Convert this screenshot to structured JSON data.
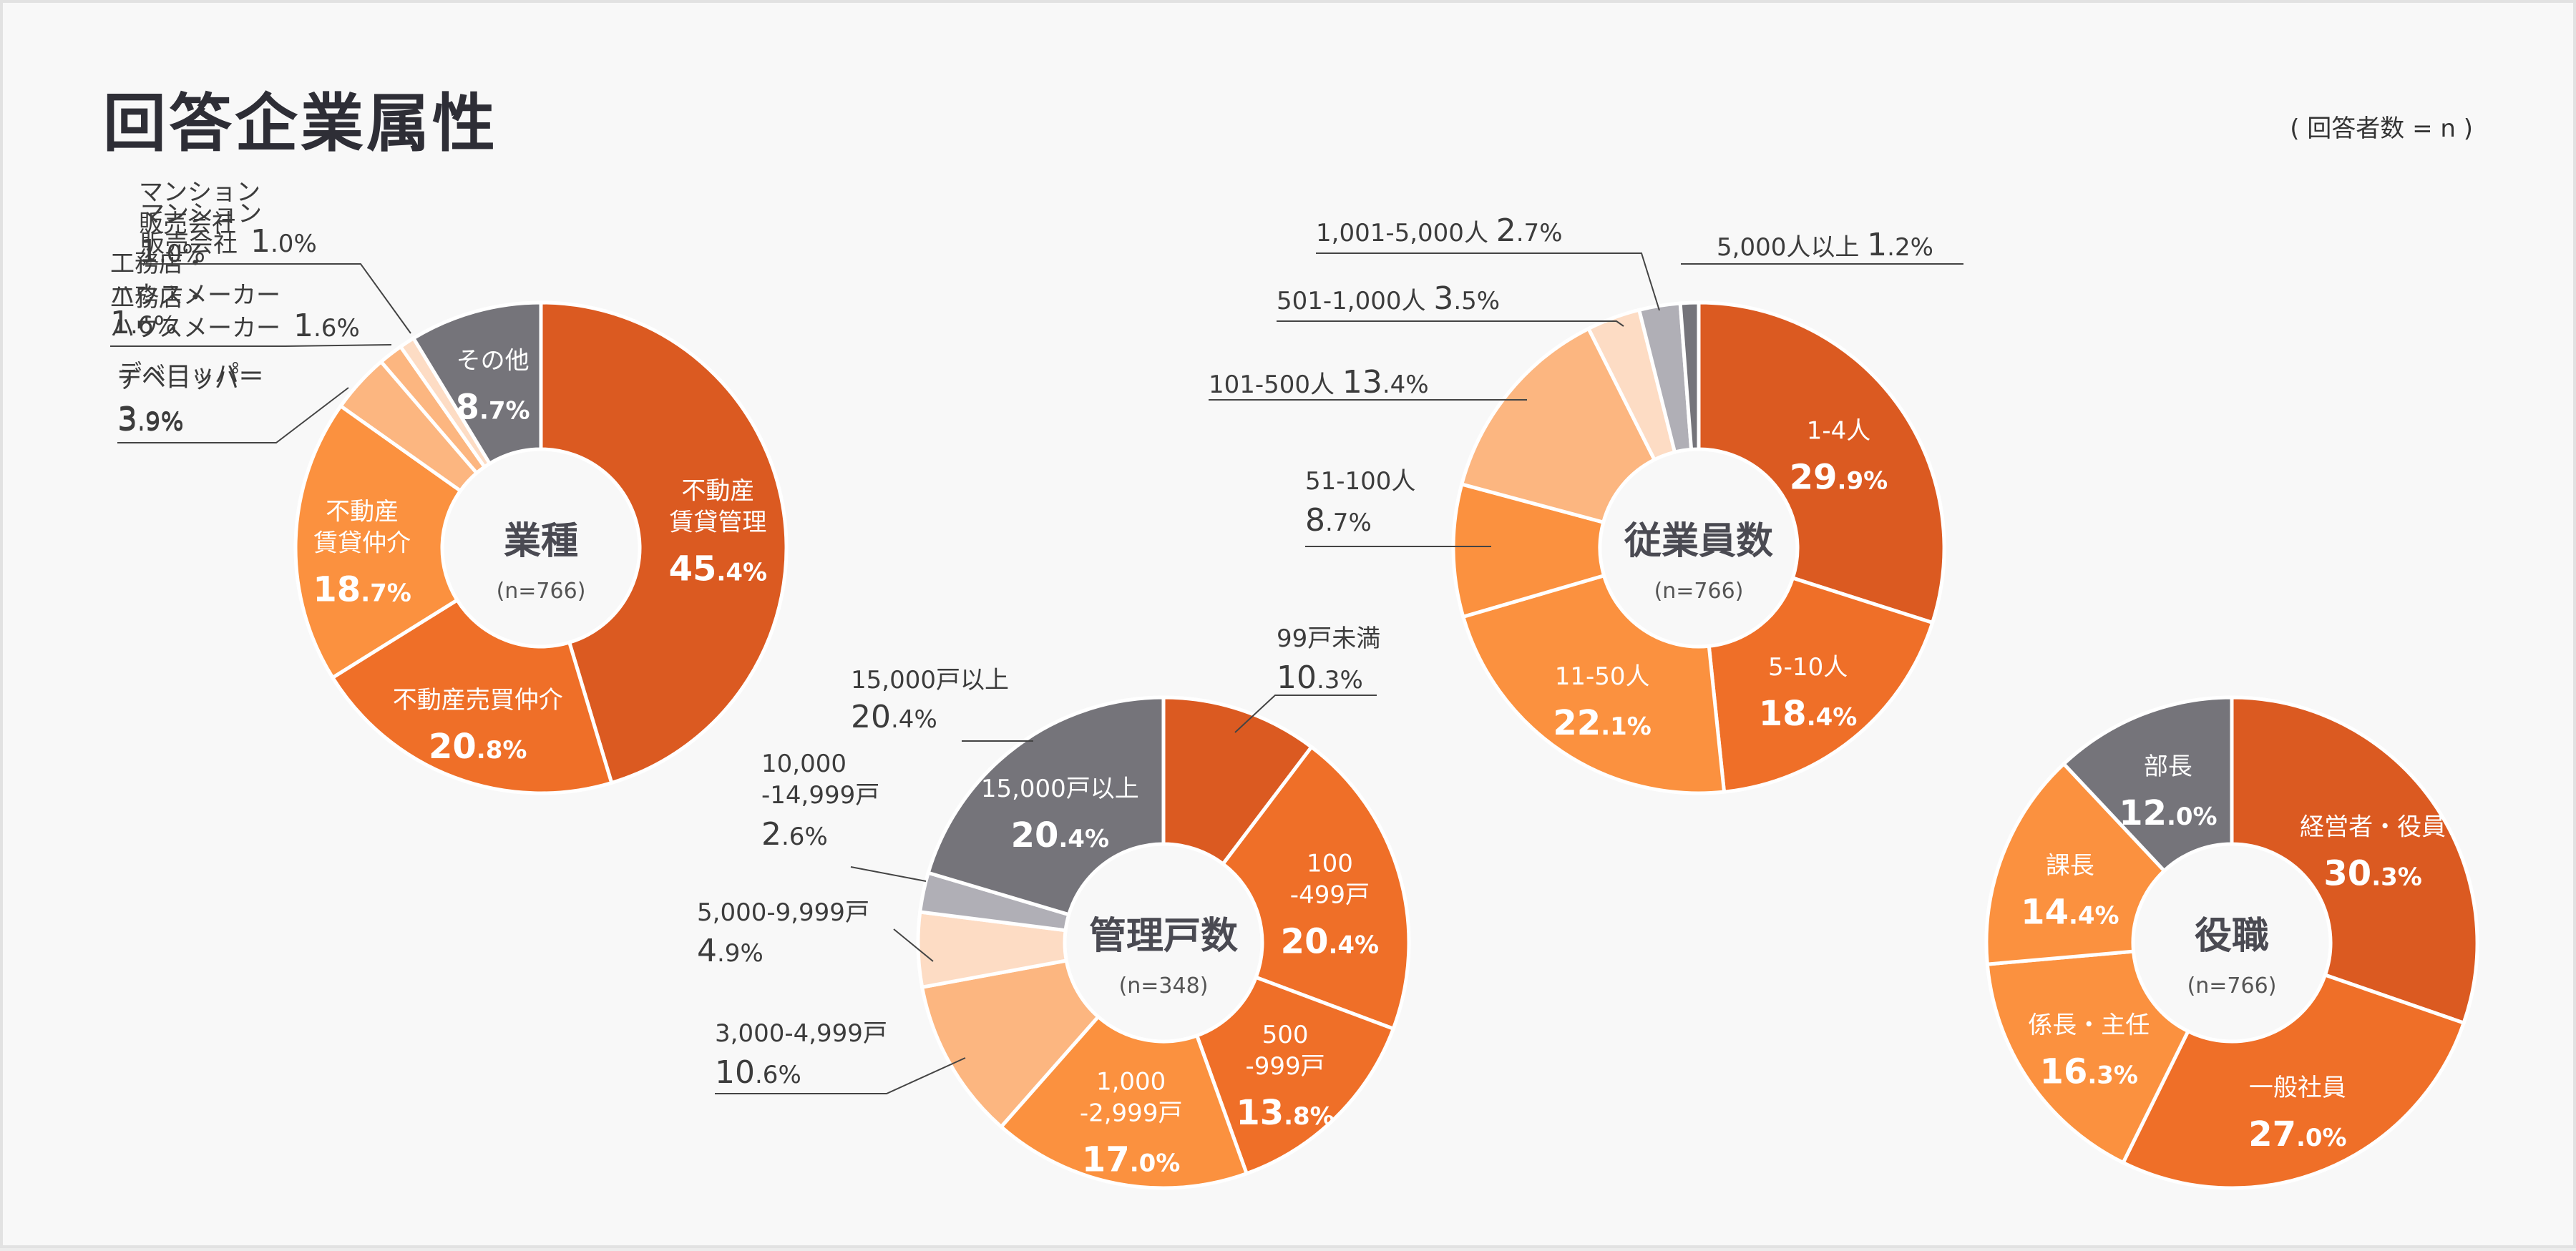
{
  "page": {
    "title": "回答企業属性",
    "note": "( 回答者数 = n )"
  },
  "colors": {
    "dark": "#db5a21",
    "mid": "#ef6f28",
    "light": "#fb913f",
    "lighter": "#fcb680",
    "pale": "#fddcc4",
    "grey": "#b0afb6",
    "dark_grey": "#75747a",
    "label_dark": "#3c3c3c",
    "center_text": "#4a4a52"
  },
  "chart_data": [
    {
      "type": "pie",
      "title": "業種",
      "n_label": "(n=766)",
      "slices": [
        {
          "label": "不動産\n賃貸管理",
          "value": 45.4,
          "color": "#db5a21"
        },
        {
          "label": "不動産売買仲介",
          "value": 20.8,
          "color": "#ef6f28"
        },
        {
          "label": "不動産\n賃貸仲介",
          "value": 18.7,
          "color": "#fb913f"
        },
        {
          "label": "デベロッパー",
          "value": 3.9,
          "color": "#fcb680"
        },
        {
          "label": "工務店・\nハウスメーカー",
          "value": 1.6,
          "color": "#fcb680"
        },
        {
          "label": "マンション\n販売会社",
          "value": 1.0,
          "color": "#fddcc4"
        },
        {
          "label": "その他",
          "value": 8.7,
          "color": "#75747a"
        }
      ]
    },
    {
      "type": "pie",
      "title": "管理戸数",
      "n_label": "(n=348)",
      "slices": [
        {
          "label": "99戸未満",
          "value": 10.3,
          "color": "#db5a21"
        },
        {
          "label": "100\n-499戸",
          "value": 20.4,
          "color": "#ef6f28"
        },
        {
          "label": "500\n-999戸",
          "value": 13.8,
          "color": "#ef6f28"
        },
        {
          "label": "1,000\n-2,999戸",
          "value": 17.0,
          "color": "#fb913f"
        },
        {
          "label": "3,000-4,999戸",
          "value": 10.6,
          "color": "#fcb680"
        },
        {
          "label": "5,000-9,999戸",
          "value": 4.9,
          "color": "#fddcc4"
        },
        {
          "label": "10,000\n-14,999戸",
          "value": 2.6,
          "color": "#b0afb6"
        },
        {
          "label": "15,000戸以上",
          "value": 20.4,
          "color": "#75747a"
        }
      ]
    },
    {
      "type": "pie",
      "title": "従業員数",
      "n_label": "(n=766)",
      "slices": [
        {
          "label": "1-4人",
          "value": 29.9,
          "color": "#db5a21"
        },
        {
          "label": "5-10人",
          "value": 18.4,
          "color": "#ef6f28"
        },
        {
          "label": "11-50人",
          "value": 22.1,
          "color": "#fb913f"
        },
        {
          "label": "51-100人",
          "value": 8.7,
          "color": "#fb913f"
        },
        {
          "label": "101-500人",
          "value": 13.4,
          "color": "#fcb680"
        },
        {
          "label": "501-1,000人",
          "value": 3.5,
          "color": "#fddcc4"
        },
        {
          "label": "1,001-5,000人",
          "value": 2.7,
          "color": "#b0afb6"
        },
        {
          "label": "5,000人以上",
          "value": 1.2,
          "color": "#75747a"
        }
      ]
    },
    {
      "type": "pie",
      "title": "役職",
      "n_label": "(n=766)",
      "slices": [
        {
          "label": "経営者・役員",
          "value": 30.3,
          "color": "#db5a21"
        },
        {
          "label": "一般社員",
          "value": 27.0,
          "color": "#ef6f28"
        },
        {
          "label": "係長・主任",
          "value": 16.3,
          "color": "#fb913f"
        },
        {
          "label": "課長",
          "value": 14.4,
          "color": "#fb913f"
        },
        {
          "label": "部長",
          "value": 12.0,
          "color": "#75747a"
        }
      ]
    }
  ]
}
